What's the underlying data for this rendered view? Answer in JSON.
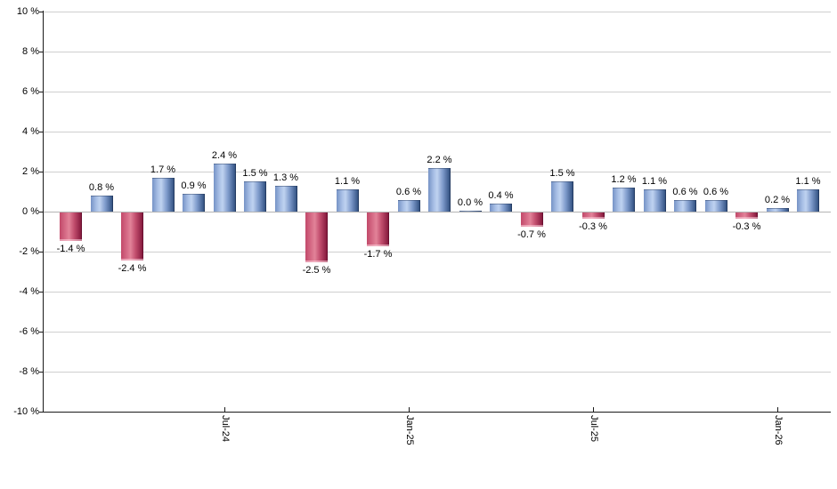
{
  "chart_data": {
    "type": "bar",
    "title": "",
    "unit": "%",
    "ylim": [
      -10,
      10
    ],
    "y_tick_step": 2,
    "grid": true,
    "legend_position": "none",
    "y_tick_labels": [
      "10 %",
      "8 %",
      "6 %",
      "4 %",
      "2 %",
      "0 %",
      "-2 %",
      "-4 %",
      "-6 %",
      "-8 %",
      "-10 %"
    ],
    "x_tick_labels": [
      {
        "index": 5,
        "label": "Jul-24"
      },
      {
        "index": 11,
        "label": "Jan-25"
      },
      {
        "index": 17,
        "label": "Jul-25"
      },
      {
        "index": 23,
        "label": "Jan-26"
      }
    ],
    "values": [
      -1.4,
      0.8,
      -2.4,
      1.7,
      0.9,
      2.4,
      1.5,
      1.3,
      -2.5,
      1.1,
      -1.7,
      0.6,
      2.2,
      0.0,
      0.4,
      -0.7,
      1.5,
      -0.3,
      1.2,
      1.1,
      0.6,
      0.6,
      -0.3,
      0.2,
      1.1
    ],
    "value_labels": [
      "-1.4 %",
      "0.8 %",
      "-2.4 %",
      "1.7 %",
      "0.9 %",
      "2.4 %",
      "1.5 %",
      "1.3 %",
      "-2.5 %",
      "1.1 %",
      "-1.7 %",
      "0.6 %",
      "2.2 %",
      "0.0 %",
      "0.4 %",
      "-0.7 %",
      "1.5 %",
      "-0.3 %",
      "1.2 %",
      "1.1 %",
      "0.6 %",
      "0.6 %",
      "-0.3 %",
      "0.2 %",
      "1.1 %"
    ],
    "colors": {
      "positive_gradient": [
        "#7693c6",
        "#a9c0e6",
        "#bfd2f0",
        "#7f9bcb",
        "#3e5d8e",
        "#2e4a74"
      ],
      "negative_gradient": [
        "#c2496a",
        "#d9718b",
        "#e28399",
        "#c24e6e",
        "#8e2144",
        "#7a1536"
      ],
      "gridline": "#cfcfcf",
      "zero_line": "#b3b3b3",
      "axis": "#1a1a1a",
      "label_text": "#000000"
    }
  }
}
